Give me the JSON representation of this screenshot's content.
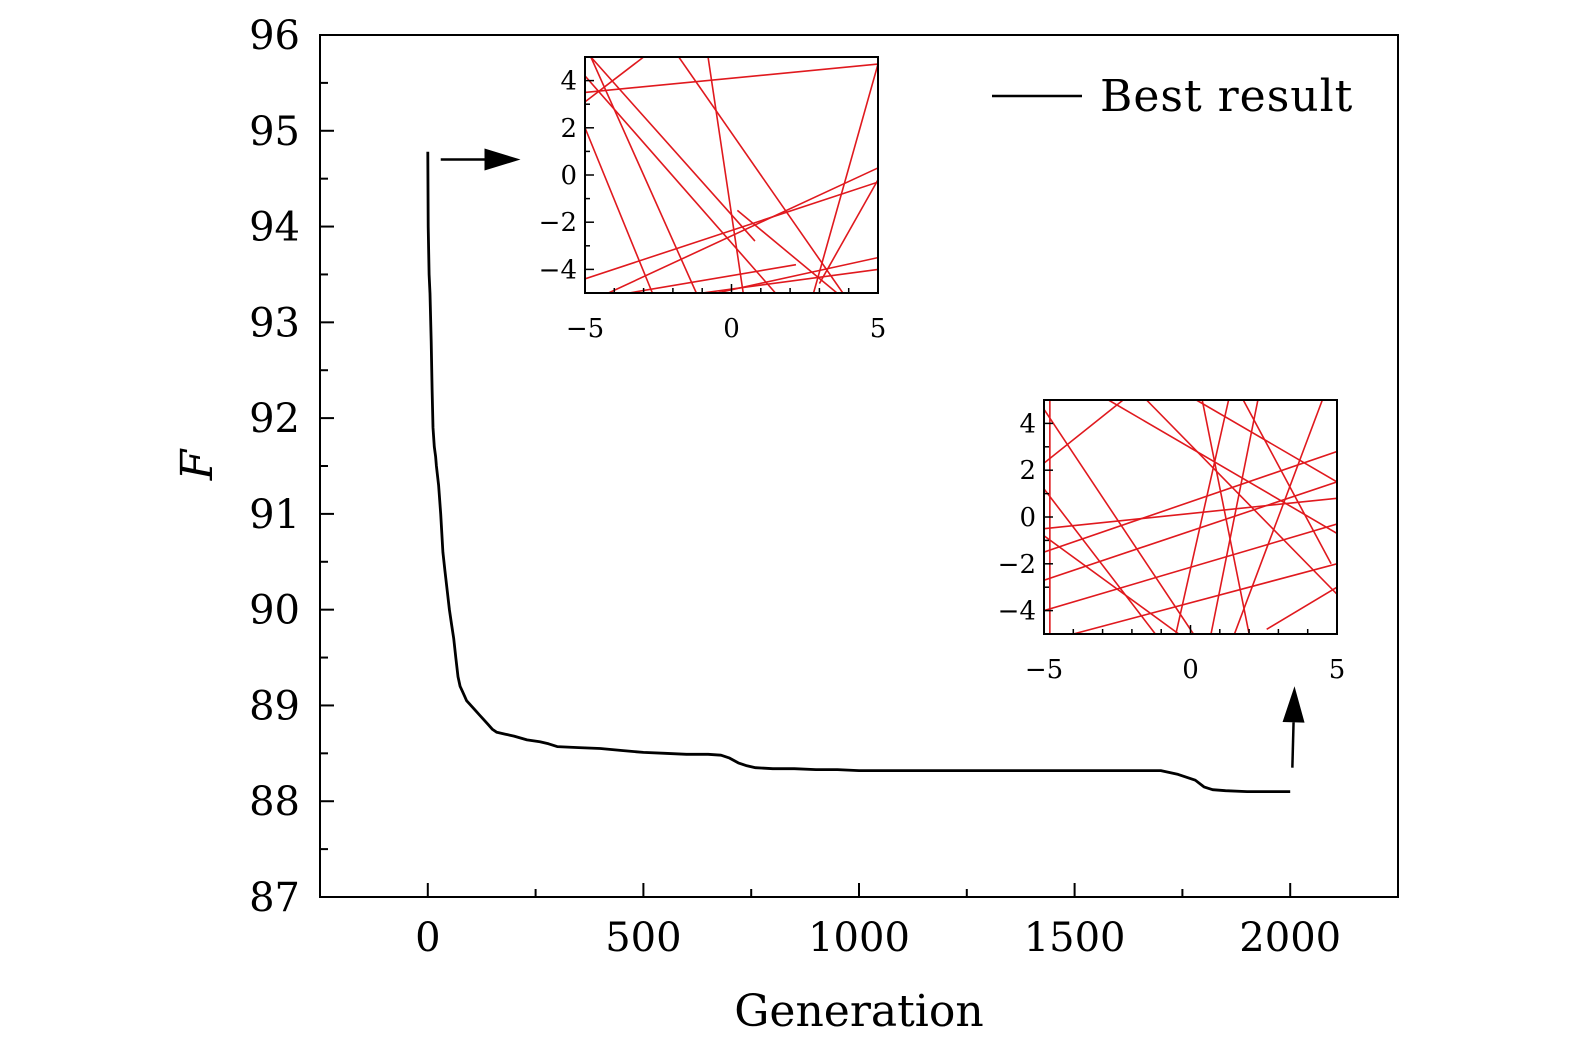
{
  "chart_data": {
    "type": "line",
    "xlabel": "Generation",
    "ylabel": "F",
    "xlim": [
      -250,
      2250
    ],
    "ylim": [
      87,
      96
    ],
    "xticks": [
      0,
      500,
      1000,
      1500,
      2000
    ],
    "yticks": [
      87,
      88,
      89,
      90,
      91,
      92,
      93,
      94,
      95,
      96
    ],
    "grid": false,
    "legend": {
      "position": "top-right",
      "entries": [
        "Best result"
      ]
    },
    "series": [
      {
        "name": "Best result",
        "color": "#000000",
        "x": [
          0,
          1,
          3,
          5,
          8,
          10,
          12,
          15,
          18,
          20,
          25,
          30,
          35,
          40,
          45,
          50,
          55,
          60,
          65,
          70,
          75,
          80,
          85,
          90,
          100,
          110,
          120,
          130,
          140,
          150,
          160,
          180,
          200,
          230,
          260,
          280,
          300,
          350,
          400,
          450,
          500,
          550,
          600,
          650,
          680,
          700,
          720,
          740,
          760,
          800,
          850,
          900,
          950,
          1000,
          1100,
          1200,
          1300,
          1400,
          1500,
          1600,
          1700,
          1720,
          1740,
          1760,
          1780,
          1800,
          1820,
          1850,
          1900,
          1950,
          2000
        ],
        "y": [
          94.78,
          94.0,
          93.5,
          93.3,
          92.8,
          92.3,
          91.9,
          91.7,
          91.6,
          91.5,
          91.3,
          91.0,
          90.6,
          90.4,
          90.2,
          90.0,
          89.85,
          89.7,
          89.5,
          89.3,
          89.2,
          89.15,
          89.1,
          89.05,
          89.0,
          88.95,
          88.9,
          88.85,
          88.8,
          88.75,
          88.72,
          88.7,
          88.68,
          88.64,
          88.62,
          88.6,
          88.57,
          88.56,
          88.55,
          88.53,
          88.51,
          88.5,
          88.49,
          88.49,
          88.48,
          88.45,
          88.4,
          88.37,
          88.35,
          88.34,
          88.34,
          88.33,
          88.33,
          88.32,
          88.32,
          88.32,
          88.32,
          88.32,
          88.32,
          88.32,
          88.32,
          88.3,
          88.28,
          88.25,
          88.22,
          88.15,
          88.12,
          88.11,
          88.1,
          88.1,
          88.1
        ]
      }
    ],
    "annotations": [
      {
        "type": "arrow",
        "from": [
          30,
          94.7
        ],
        "to": [
          215,
          94.7
        ],
        "target": "inset-top"
      },
      {
        "type": "arrow",
        "from": [
          2005,
          88.35
        ],
        "to": [
          2010,
          89.2
        ],
        "target": "inset-bottom"
      }
    ],
    "insets": [
      {
        "id": "inset-top",
        "type": "line",
        "xlim": [
          -5,
          5
        ],
        "ylim": [
          -5,
          5
        ],
        "xticks": [
          -5,
          0,
          5
        ],
        "yticks": [
          -4,
          -2,
          0,
          2,
          4
        ],
        "xtick_labels": [
          "−5",
          "0",
          "5"
        ],
        "ytick_labels": [
          "−4",
          "−2",
          "0",
          "2",
          "4"
        ],
        "line_color": "#e0191e",
        "segments": [
          [
            [
              -5,
              3.5
            ],
            [
              5,
              4.7
            ]
          ],
          [
            [
              -5,
              2.0
            ],
            [
              -2.7,
              -5
            ]
          ],
          [
            [
              -4.8,
              5
            ],
            [
              -1.2,
              -5
            ]
          ],
          [
            [
              -5,
              4.2
            ],
            [
              1.5,
              -5
            ]
          ],
          [
            [
              -1.8,
              5
            ],
            [
              3.8,
              -5
            ]
          ],
          [
            [
              -5,
              3.1
            ],
            [
              -3.0,
              5
            ]
          ],
          [
            [
              -4.2,
              -5
            ],
            [
              5,
              0.3
            ]
          ],
          [
            [
              -5,
              -4.4
            ],
            [
              5,
              -0.3
            ]
          ],
          [
            [
              -0.8,
              5
            ],
            [
              0.4,
              -5
            ]
          ],
          [
            [
              5,
              4.7
            ],
            [
              2.8,
              -5
            ]
          ],
          [
            [
              -0.5,
              -5
            ],
            [
              5,
              -3.5
            ]
          ],
          [
            [
              -3.5,
              -5
            ],
            [
              2.2,
              -3.8
            ]
          ],
          [
            [
              0.2,
              -1.5
            ],
            [
              3.6,
              -5
            ]
          ],
          [
            [
              -4.8,
              5
            ],
            [
              0.8,
              -2.8
            ]
          ],
          [
            [
              -1.0,
              -5
            ],
            [
              5,
              -4.0
            ]
          ],
          [
            [
              3.0,
              -4.6
            ],
            [
              5,
              -0.2
            ]
          ]
        ]
      },
      {
        "id": "inset-bottom",
        "type": "line",
        "xlim": [
          -5,
          5
        ],
        "ylim": [
          -5,
          5
        ],
        "xticks": [
          -5,
          0,
          5
        ],
        "yticks": [
          -4,
          -2,
          0,
          2,
          4
        ],
        "xtick_labels": [
          "−5",
          "0",
          "5"
        ],
        "ytick_labels": [
          "−4",
          "−2",
          "0",
          "2",
          "4"
        ],
        "line_color": "#e0191e",
        "segments": [
          [
            [
              -4.8,
              5
            ],
            [
              -4.8,
              -5
            ]
          ],
          [
            [
              -5,
              2.3
            ],
            [
              -2.3,
              5
            ]
          ],
          [
            [
              -5,
              4.6
            ],
            [
              0.1,
              -5
            ]
          ],
          [
            [
              -5,
              -4.0
            ],
            [
              5,
              -0.3
            ]
          ],
          [
            [
              -5,
              -2.7
            ],
            [
              5,
              1.5
            ]
          ],
          [
            [
              -5,
              -1.5
            ],
            [
              5,
              2.8
            ]
          ],
          [
            [
              -5,
              -0.5
            ],
            [
              5,
              0.8
            ]
          ],
          [
            [
              -1.5,
              5
            ],
            [
              5,
              -3.3
            ]
          ],
          [
            [
              -2.8,
              5
            ],
            [
              5,
              -0.7
            ]
          ],
          [
            [
              0.2,
              5
            ],
            [
              5,
              1.5
            ]
          ],
          [
            [
              -0.5,
              -5
            ],
            [
              1.3,
              5
            ]
          ],
          [
            [
              0.7,
              -5
            ],
            [
              2.3,
              5
            ]
          ],
          [
            [
              1.5,
              -5
            ],
            [
              4.5,
              5
            ]
          ],
          [
            [
              0.4,
              5
            ],
            [
              2.0,
              -5
            ]
          ],
          [
            [
              -5,
              -0.8
            ],
            [
              -0.4,
              -5
            ]
          ],
          [
            [
              -5,
              1.2
            ],
            [
              -1.2,
              -5
            ]
          ],
          [
            [
              1.8,
              5
            ],
            [
              4.8,
              -2.0
            ]
          ],
          [
            [
              -4.0,
              -5
            ],
            [
              5,
              -2.0
            ]
          ],
          [
            [
              2.6,
              -4.8
            ],
            [
              5,
              -3.0
            ]
          ]
        ]
      }
    ]
  }
}
